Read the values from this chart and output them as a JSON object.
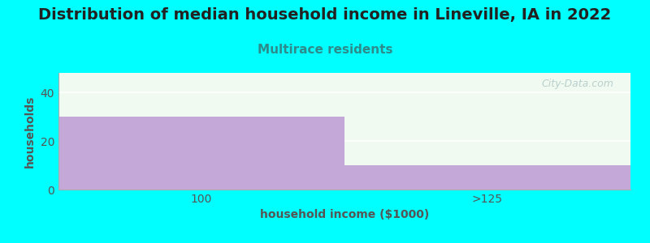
{
  "title": "Distribution of median household income in Lineville, IA in 2022",
  "subtitle": "Multirace residents",
  "xlabel": "household income ($1000)",
  "ylabel": "households",
  "categories": [
    "100",
    ">125"
  ],
  "values": [
    30,
    10
  ],
  "bar_color": "#c4a8d8",
  "background_color": "#00ffff",
  "plot_bg_color": "#f0faf0",
  "ylim": [
    0,
    48
  ],
  "yticks": [
    0,
    20,
    40
  ],
  "title_fontsize": 14,
  "title_color": "#222222",
  "subtitle_fontsize": 11,
  "subtitle_color": "#2d8b8b",
  "axis_label_color": "#555555",
  "tick_color": "#555555",
  "watermark": "City-Data.com",
  "bar_positions": [
    0.25,
    0.75
  ],
  "bar_width": 0.5,
  "xlim": [
    0,
    1
  ]
}
